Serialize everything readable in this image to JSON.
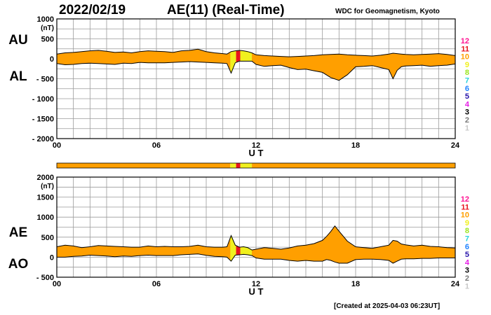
{
  "header": {
    "date": "2022/02/19",
    "title": "AE(11) (Real-Time)",
    "source": "WDC for Geomagnetism, Kyoto"
  },
  "footer": "[Created at 2025-04-03 06:23UT]",
  "colors": {
    "fill": "#ff9f00",
    "highlight": "#f0f01e",
    "highlight_center": "#ef5a3c",
    "grid": "#9a9a9a",
    "line": "#000000"
  },
  "legend": [
    {
      "label": "12",
      "color": "#ff1493"
    },
    {
      "label": "11",
      "color": "#e8141e"
    },
    {
      "label": "10",
      "color": "#ff9f00"
    },
    {
      "label": "9",
      "color": "#f0f01e"
    },
    {
      "label": "8",
      "color": "#9be61e"
    },
    {
      "label": "7",
      "color": "#28d2dc"
    },
    {
      "label": "6",
      "color": "#1e82ff"
    },
    {
      "label": "5",
      "color": "#2814aa"
    },
    {
      "label": "4",
      "color": "#e61ee6"
    },
    {
      "label": "3",
      "color": "#000000"
    },
    {
      "label": "2",
      "color": "#7a7a7a"
    },
    {
      "label": "1",
      "color": "#c8c8c8"
    }
  ],
  "status_bar": {
    "segments": [
      {
        "from": 0,
        "to": 10.45,
        "level": 10
      },
      {
        "from": 10.45,
        "to": 10.8,
        "level": 9
      },
      {
        "from": 10.8,
        "to": 11.05,
        "level": 11
      },
      {
        "from": 11.05,
        "to": 11.75,
        "level": 9
      },
      {
        "from": 11.75,
        "to": 24,
        "level": 10
      }
    ]
  },
  "chart_data": [
    {
      "type": "area",
      "panel": "AU/AL",
      "labels": {
        "upper": "AU",
        "lower": "AL"
      },
      "unit": "(nT)",
      "xlabel": "U T",
      "xlim": [
        0,
        24
      ],
      "ylim": [
        -2000,
        1000
      ],
      "xticks": [
        "00",
        "06",
        "12",
        "18",
        "24"
      ],
      "yticks": [
        "1000",
        "500",
        "0",
        "- 500",
        "- 1000",
        "- 1500",
        "- 2000"
      ],
      "highlight": [
        {
          "from": 10.45,
          "to": 10.8,
          "level": 9
        },
        {
          "from": 10.8,
          "to": 11.05,
          "level": 11
        },
        {
          "from": 11.05,
          "to": 11.75,
          "level": 9
        }
      ],
      "grid": true,
      "x": [
        0,
        0.5,
        1,
        1.5,
        2,
        2.5,
        3,
        3.5,
        4,
        4.5,
        5,
        5.5,
        6,
        6.5,
        7,
        7.5,
        8,
        8.5,
        9,
        9.5,
        10,
        10.25,
        10.5,
        10.75,
        11,
        11.25,
        11.5,
        11.75,
        12,
        12.5,
        13,
        13.5,
        14,
        14.5,
        15,
        15.5,
        16,
        16.5,
        17,
        17.5,
        18,
        18.5,
        19,
        19.5,
        20,
        20.25,
        20.5,
        20.75,
        21,
        21.5,
        22,
        22.5,
        23,
        23.5,
        24
      ],
      "series": [
        {
          "name": "AU",
          "values": [
            120,
            150,
            160,
            180,
            200,
            210,
            190,
            160,
            170,
            150,
            180,
            200,
            190,
            180,
            160,
            200,
            210,
            240,
            180,
            150,
            130,
            120,
            180,
            200,
            210,
            200,
            180,
            150,
            100,
            80,
            70,
            60,
            50,
            60,
            70,
            80,
            100,
            110,
            120,
            100,
            90,
            80,
            70,
            90,
            120,
            140,
            130,
            120,
            110,
            100,
            110,
            120,
            130,
            110,
            80
          ]
        },
        {
          "name": "AL",
          "values": [
            -120,
            -150,
            -140,
            -120,
            -110,
            -120,
            -130,
            -140,
            -110,
            -120,
            -90,
            -100,
            -100,
            -100,
            -90,
            -80,
            -70,
            -80,
            -90,
            -100,
            -110,
            -120,
            -360,
            -100,
            -60,
            -60,
            -60,
            -60,
            -140,
            -190,
            -170,
            -160,
            -220,
            -270,
            -260,
            -300,
            -340,
            -470,
            -540,
            -400,
            -200,
            -190,
            -170,
            -220,
            -270,
            -500,
            -290,
            -200,
            -180,
            -170,
            -160,
            -190,
            -170,
            -160,
            -130
          ]
        }
      ]
    },
    {
      "type": "area",
      "panel": "AE/AO",
      "labels": {
        "upper": "AE",
        "lower": "AO"
      },
      "unit": "(nT)",
      "xlabel": "U T",
      "xlim": [
        0,
        24
      ],
      "ylim": [
        -500,
        2000
      ],
      "xticks": [
        "00",
        "06",
        "12",
        "18",
        "24"
      ],
      "yticks": [
        "2000",
        "1500",
        "1000",
        "500",
        "0",
        "- 500"
      ],
      "highlight": [
        {
          "from": 10.45,
          "to": 10.8,
          "level": 9
        },
        {
          "from": 10.8,
          "to": 11.05,
          "level": 11
        },
        {
          "from": 11.05,
          "to": 11.75,
          "level": 9
        }
      ],
      "grid": true,
      "x": [
        0,
        0.5,
        1,
        1.5,
        2,
        2.5,
        3,
        3.5,
        4,
        4.5,
        5,
        5.5,
        6,
        6.5,
        7,
        7.5,
        8,
        8.5,
        9,
        9.5,
        10,
        10.25,
        10.5,
        10.75,
        11,
        11.25,
        11.5,
        11.75,
        12,
        12.5,
        13,
        13.5,
        14,
        14.5,
        15,
        15.5,
        16,
        16.25,
        16.5,
        16.75,
        17,
        17.5,
        18,
        18.5,
        19,
        19.5,
        20,
        20.25,
        20.5,
        20.75,
        21,
        21.5,
        22,
        22.5,
        23,
        23.5,
        24
      ],
      "series": [
        {
          "name": "AE",
          "values": [
            260,
            300,
            280,
            240,
            260,
            290,
            280,
            270,
            260,
            250,
            250,
            280,
            260,
            270,
            260,
            260,
            270,
            300,
            260,
            250,
            250,
            260,
            540,
            300,
            250,
            260,
            240,
            180,
            200,
            240,
            220,
            200,
            230,
            280,
            300,
            340,
            420,
            520,
            640,
            780,
            650,
            400,
            260,
            240,
            220,
            260,
            300,
            420,
            400,
            330,
            310,
            280,
            300,
            270,
            260,
            240,
            230
          ]
        },
        {
          "name": "AO",
          "values": [
            0,
            0,
            20,
            30,
            50,
            40,
            30,
            10,
            30,
            20,
            40,
            50,
            40,
            40,
            40,
            60,
            70,
            80,
            45,
            20,
            10,
            0,
            -100,
            50,
            60,
            70,
            60,
            40,
            -20,
            -50,
            -50,
            -50,
            -80,
            -100,
            -80,
            -100,
            -100,
            -60,
            -80,
            -120,
            -150,
            -150,
            -60,
            -50,
            -50,
            -60,
            -80,
            -150,
            -100,
            -50,
            -40,
            -40,
            -30,
            -30,
            -20,
            -20,
            -20
          ]
        }
      ]
    }
  ]
}
